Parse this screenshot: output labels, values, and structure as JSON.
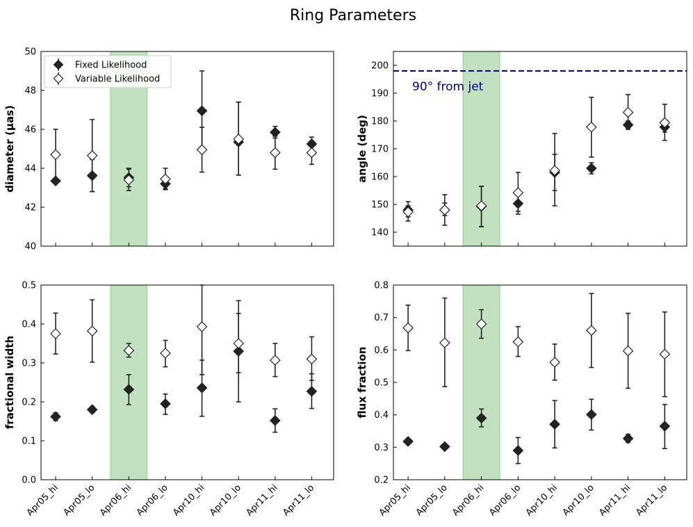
{
  "figure": {
    "title": "Ring Parameters",
    "colors": {
      "marker": "#222222",
      "highlight": "#a9d5a9",
      "reference_line": "#00007f",
      "annotation": "#00008b"
    }
  },
  "chart_data": [
    {
      "type": "scatter",
      "title": "",
      "ylabel": "diameter (μas)",
      "ylim": [
        40,
        50
      ],
      "yticks": [
        40,
        42,
        44,
        46,
        48,
        50
      ],
      "categories": [
        "Apr05_hi",
        "Apr05_lo",
        "Apr06_hi",
        "Apr06_lo",
        "Apr10_hi",
        "Apr10_lo",
        "Apr11_hi",
        "Apr11_lo"
      ],
      "show_xticklabels": false,
      "highlight_category": "Apr06_hi",
      "legend": {
        "location": "upper-left",
        "entries": [
          "Fixed Likelihood",
          "Variable Likelihood"
        ]
      },
      "series": [
        {
          "name": "Fixed Likelihood",
          "marker": "filled-diamond",
          "values": [
            43.35,
            43.62,
            43.52,
            43.2,
            46.95,
            45.35,
            45.85,
            45.25
          ],
          "err_low": [
            43.35,
            42.8,
            43.05,
            42.95,
            44.95,
            43.65,
            45.55,
            44.9
          ],
          "err_high": [
            43.35,
            44.45,
            44.0,
            43.45,
            49.0,
            47.4,
            46.15,
            45.6
          ]
        },
        {
          "name": "Variable Likelihood",
          "marker": "open-diamond",
          "values": [
            44.7,
            44.65,
            43.4,
            43.45,
            44.95,
            45.5,
            44.8,
            44.8
          ],
          "err_low": [
            43.4,
            42.8,
            42.85,
            42.9,
            43.8,
            43.65,
            43.95,
            44.2
          ],
          "err_high": [
            46.0,
            46.5,
            43.95,
            44.0,
            46.1,
            47.4,
            45.65,
            45.4
          ]
        }
      ]
    },
    {
      "type": "scatter",
      "title": "",
      "ylabel": "angle (deg)",
      "ylim": [
        135,
        205
      ],
      "yticks": [
        140,
        150,
        160,
        170,
        180,
        190,
        200
      ],
      "categories": [
        "Apr05_hi",
        "Apr05_lo",
        "Apr06_hi",
        "Apr06_lo",
        "Apr10_hi",
        "Apr10_lo",
        "Apr11_hi",
        "Apr11_lo"
      ],
      "show_xticklabels": false,
      "highlight_category": "Apr06_hi",
      "reference_line": {
        "y": 198,
        "label": "90° from jet"
      },
      "series": [
        {
          "name": "Fixed Likelihood",
          "marker": "filled-diamond",
          "values": [
            148,
            148,
            149.3,
            150.3,
            161.5,
            163,
            178.6,
            177.8
          ],
          "err_low": [
            145.5,
            146,
            142,
            146.5,
            155,
            161,
            177.5,
            176
          ],
          "err_high": [
            151,
            150.5,
            156.5,
            154,
            168,
            165,
            180,
            180
          ]
        },
        {
          "name": "Variable Likelihood",
          "marker": "open-diamond",
          "values": [
            147.3,
            148,
            149.5,
            154.2,
            162.2,
            177.8,
            183.1,
            179.4
          ],
          "err_low": [
            144,
            142.5,
            142,
            147.5,
            149.5,
            167,
            177,
            173
          ],
          "err_high": [
            149.5,
            153.5,
            156.5,
            161.5,
            175.5,
            188.5,
            189.5,
            186
          ]
        }
      ]
    },
    {
      "type": "scatter",
      "title": "",
      "ylabel": "fractional width",
      "ylim": [
        0.0,
        0.5
      ],
      "yticks": [
        0.0,
        0.1,
        0.2,
        0.3,
        0.4,
        0.5
      ],
      "categories": [
        "Apr05_hi",
        "Apr05_lo",
        "Apr06_hi",
        "Apr06_lo",
        "Apr10_hi",
        "Apr10_lo",
        "Apr11_hi",
        "Apr11_lo"
      ],
      "show_xticklabels": true,
      "highlight_category": "Apr06_hi",
      "series": [
        {
          "name": "Fixed Likelihood",
          "marker": "filled-diamond",
          "values": [
            0.162,
            0.18,
            0.232,
            0.195,
            0.236,
            0.33,
            0.152,
            0.227
          ],
          "err_low": [
            0.152,
            0.172,
            0.193,
            0.168,
            0.163,
            0.2,
            0.122,
            0.183
          ],
          "err_high": [
            0.172,
            0.188,
            0.27,
            0.22,
            0.307,
            0.46,
            0.182,
            0.272
          ]
        },
        {
          "name": "Variable Likelihood",
          "marker": "open-diamond",
          "values": [
            0.375,
            0.382,
            0.332,
            0.325,
            0.393,
            0.35,
            0.307,
            0.31
          ],
          "err_low": [
            0.323,
            0.302,
            0.315,
            0.29,
            0.27,
            0.275,
            0.265,
            0.255
          ],
          "err_high": [
            0.428,
            0.462,
            0.35,
            0.358,
            0.5,
            0.427,
            0.35,
            0.367
          ]
        }
      ]
    },
    {
      "type": "scatter",
      "title": "",
      "ylabel": "flux fraction",
      "ylim": [
        0.2,
        0.8
      ],
      "yticks": [
        0.2,
        0.3,
        0.4,
        0.5,
        0.6,
        0.7,
        0.8
      ],
      "categories": [
        "Apr05_hi",
        "Apr05_lo",
        "Apr06_hi",
        "Apr06_lo",
        "Apr10_hi",
        "Apr10_lo",
        "Apr11_hi",
        "Apr11_lo"
      ],
      "show_xticklabels": true,
      "highlight_category": "Apr06_hi",
      "series": [
        {
          "name": "Fixed Likelihood",
          "marker": "filled-diamond",
          "values": [
            0.318,
            0.302,
            0.39,
            0.29,
            0.371,
            0.401,
            0.327,
            0.365
          ],
          "err_low": [
            0.312,
            0.298,
            0.363,
            0.25,
            0.298,
            0.353,
            0.315,
            0.296
          ],
          "err_high": [
            0.324,
            0.306,
            0.418,
            0.33,
            0.444,
            0.448,
            0.34,
            0.432
          ]
        },
        {
          "name": "Variable Likelihood",
          "marker": "open-diamond",
          "values": [
            0.668,
            0.622,
            0.68,
            0.625,
            0.562,
            0.66,
            0.597,
            0.587
          ],
          "err_low": [
            0.598,
            0.487,
            0.636,
            0.58,
            0.507,
            0.546,
            0.482,
            0.456
          ],
          "err_high": [
            0.738,
            0.76,
            0.724,
            0.672,
            0.618,
            0.774,
            0.713,
            0.717
          ]
        }
      ]
    }
  ]
}
